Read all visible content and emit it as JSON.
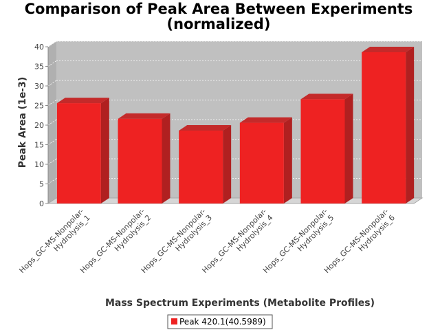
{
  "chart_data": {
    "type": "bar",
    "title": "Comparison of Peak Area Between Experiments",
    "subtitle": "(normalized)",
    "xlabel": "Mass Spectrum Experiments (Metabolite Profiles)",
    "ylabel": "Peak Area (1e-3)",
    "ylim": [
      0,
      40
    ],
    "yticks": [
      0,
      5,
      10,
      15,
      20,
      25,
      30,
      35,
      40
    ],
    "categories": [
      [
        "Hops_GC-MS-Nonpolar-",
        "Hydrolysis_1"
      ],
      [
        "Hops_GC-MS-Nonpolar-",
        "Hydrolysis_2"
      ],
      [
        "Hops_GC-MS-Nonpolar-",
        "Hydrolysis_3"
      ],
      [
        "Hops_GC-MS-Nonpolar-",
        "Hydrolysis_4"
      ],
      [
        "Hops_GC-MS-Nonpolar-",
        "Hydrolysis_5"
      ],
      [
        "Hops_GC-MS-Nonpolar-",
        "Hydrolysis_6"
      ]
    ],
    "series": [
      {
        "name": "Peak 420.1(40.5989)",
        "values": [
          25.6,
          21.6,
          18.6,
          20.6,
          26.6,
          38.6
        ],
        "color": "#ee2222"
      }
    ],
    "grid": true,
    "legend": "bottom-center",
    "colors": {
      "plot_background": "#c0c0c0",
      "floor": "#d6d6d6",
      "gridline": "#ffffff"
    }
  }
}
